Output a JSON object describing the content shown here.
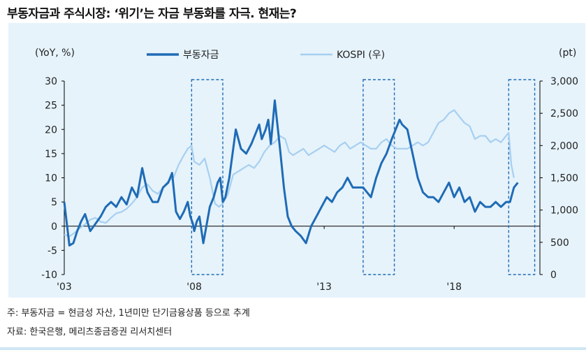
{
  "title": "부동자금과 주식시장: ‘위기’는 자금 부동화를 자극. 현재는?",
  "notes": {
    "note1": "주: 부동자금 = 현금성 자산, 1년미만 단기금융상품 등으로 추계",
    "note2": "자료: 한국은행, 메리츠종금증권 리서치센터"
  },
  "colors": {
    "series1": "#1f6bb5",
    "series2": "#a7cff0",
    "highlight_box": "#1f6bb5",
    "panel": "#e6f3fb"
  },
  "chart_data": {
    "type": "line",
    "title": "부동자금과 주식시장: ‘위기’는 자금 부동화를 자극. 현재는?",
    "ylabel_left": "(YoY, %)",
    "ylabel_right": "(pt)",
    "xlim": [
      2003.0,
      2021.3
    ],
    "ylim_left": [
      -10,
      30
    ],
    "ylim_right": [
      0,
      3000
    ],
    "x_ticks": [
      {
        "value": 2003,
        "label": "'03"
      },
      {
        "value": 2008,
        "label": "'08"
      },
      {
        "value": 2013,
        "label": "'13"
      },
      {
        "value": 2018,
        "label": "'18"
      }
    ],
    "y_ticks_left": [
      {
        "value": 30,
        "label": "30"
      },
      {
        "value": 25,
        "label": "25"
      },
      {
        "value": 20,
        "label": "20"
      },
      {
        "value": 15,
        "label": "15"
      },
      {
        "value": 10,
        "label": "10"
      },
      {
        "value": 5,
        "label": "5"
      },
      {
        "value": 0,
        "label": "0"
      },
      {
        "value": -5,
        "label": "-5"
      },
      {
        "value": -10,
        "label": "-10"
      }
    ],
    "y_ticks_right": [
      {
        "value": 3000,
        "label": "3,000"
      },
      {
        "value": 2500,
        "label": "2,500"
      },
      {
        "value": 2000,
        "label": "2,000"
      },
      {
        "value": 1500,
        "label": "1,500"
      },
      {
        "value": 1000,
        "label": "1,000"
      },
      {
        "value": 500,
        "label": "500"
      },
      {
        "value": 0,
        "label": "0"
      }
    ],
    "legend_position": "top",
    "highlight_periods": [
      [
        2007.9,
        2009.1
      ],
      [
        2014.5,
        2015.7
      ],
      [
        2020.1,
        2021.1
      ]
    ],
    "series": [
      {
        "name": "부동자금",
        "axis": "left",
        "x": [
          2003.0,
          2003.1,
          2003.2,
          2003.35,
          2003.5,
          2003.65,
          2003.8,
          2004.0,
          2004.2,
          2004.4,
          2004.6,
          2004.8,
          2005.0,
          2005.2,
          2005.4,
          2005.6,
          2005.8,
          2006.0,
          2006.2,
          2006.4,
          2006.6,
          2006.8,
          2007.0,
          2007.15,
          2007.3,
          2007.45,
          2007.6,
          2007.75,
          2007.85,
          2007.95,
          2008.0,
          2008.1,
          2008.2,
          2008.35,
          2008.5,
          2008.6,
          2008.75,
          2008.9,
          2009.0,
          2009.1,
          2009.2,
          2009.35,
          2009.5,
          2009.6,
          2009.8,
          2010.0,
          2010.2,
          2010.35,
          2010.5,
          2010.6,
          2010.75,
          2010.85,
          2010.95,
          2011.1,
          2011.3,
          2011.45,
          2011.6,
          2011.75,
          2011.9,
          2012.1,
          2012.3,
          2012.5,
          2012.7,
          2012.9,
          2013.1,
          2013.3,
          2013.5,
          2013.7,
          2013.9,
          2014.1,
          2014.3,
          2014.5,
          2014.65,
          2014.8,
          2015.0,
          2015.2,
          2015.4,
          2015.6,
          2015.75,
          2015.9,
          2016.0,
          2016.2,
          2016.4,
          2016.6,
          2016.8,
          2017.0,
          2017.2,
          2017.4,
          2017.6,
          2017.8,
          2018.0,
          2018.2,
          2018.4,
          2018.6,
          2018.8,
          2019.0,
          2019.2,
          2019.4,
          2019.6,
          2019.8,
          2020.0,
          2020.15,
          2020.3,
          2020.45
        ],
        "values": [
          5,
          0.5,
          -4,
          -3.5,
          -1,
          1,
          2.5,
          -1,
          0.5,
          2,
          4,
          5,
          4,
          6,
          4.5,
          8,
          6,
          12,
          7,
          5,
          5,
          8,
          9,
          11,
          3,
          1.5,
          3,
          5,
          2,
          0.5,
          -1,
          1,
          2,
          -3.5,
          1,
          4,
          6,
          9,
          10,
          5,
          6,
          10,
          16,
          20,
          16,
          15,
          17,
          19,
          21,
          18,
          20,
          22,
          17,
          26,
          16,
          8,
          2,
          0,
          -1,
          -2,
          -3.5,
          0,
          2,
          4,
          6,
          5,
          7,
          8,
          10,
          8,
          8,
          8,
          7,
          6,
          10,
          13,
          15,
          18,
          20,
          22,
          21,
          20,
          15,
          10,
          7,
          6,
          6,
          5,
          7,
          9,
          6,
          8,
          5,
          6,
          3,
          5,
          4,
          4,
          5,
          4,
          5,
          5,
          8,
          9
        ]
      },
      {
        "name": "KOSPI (우)",
        "axis": "right",
        "x": [
          2003.0,
          2003.2,
          2003.4,
          2003.6,
          2003.8,
          2004.0,
          2004.2,
          2004.4,
          2004.6,
          2004.8,
          2005.0,
          2005.2,
          2005.4,
          2005.6,
          2005.8,
          2006.0,
          2006.2,
          2006.4,
          2006.6,
          2006.8,
          2007.0,
          2007.2,
          2007.4,
          2007.6,
          2007.75,
          2007.9,
          2008.0,
          2008.2,
          2008.4,
          2008.6,
          2008.8,
          2008.95,
          2009.1,
          2009.3,
          2009.5,
          2009.7,
          2009.9,
          2010.1,
          2010.3,
          2010.5,
          2010.7,
          2010.9,
          2011.1,
          2011.3,
          2011.5,
          2011.65,
          2011.8,
          2012.0,
          2012.2,
          2012.4,
          2012.6,
          2012.8,
          2013.0,
          2013.2,
          2013.4,
          2013.6,
          2013.8,
          2014.0,
          2014.2,
          2014.4,
          2014.6,
          2014.8,
          2015.0,
          2015.2,
          2015.4,
          2015.6,
          2015.8,
          2016.0,
          2016.2,
          2016.4,
          2016.6,
          2016.8,
          2017.0,
          2017.2,
          2017.4,
          2017.6,
          2017.8,
          2018.0,
          2018.2,
          2018.4,
          2018.6,
          2018.8,
          2019.0,
          2019.2,
          2019.4,
          2019.6,
          2019.8,
          2020.0,
          2020.1,
          2020.2,
          2020.3
        ],
        "values": [
          620,
          590,
          650,
          720,
          780,
          850,
          880,
          820,
          800,
          880,
          950,
          970,
          1020,
          1100,
          1200,
          1350,
          1400,
          1300,
          1250,
          1350,
          1450,
          1500,
          1700,
          1850,
          1950,
          2000,
          1750,
          1700,
          1800,
          1500,
          1100,
          1050,
          1100,
          1250,
          1550,
          1600,
          1650,
          1700,
          1650,
          1750,
          1900,
          2000,
          2050,
          2150,
          2100,
          1900,
          1850,
          1900,
          1950,
          1850,
          1900,
          1950,
          2000,
          1950,
          1900,
          2000,
          2050,
          1950,
          2000,
          2050,
          2000,
          1950,
          1950,
          2050,
          2100,
          2000,
          1950,
          1950,
          1950,
          2000,
          2050,
          2000,
          2050,
          2200,
          2350,
          2400,
          2500,
          2550,
          2450,
          2350,
          2300,
          2100,
          2150,
          2150,
          2050,
          2100,
          2050,
          2150,
          2200,
          1700,
          1500
        ]
      }
    ]
  }
}
